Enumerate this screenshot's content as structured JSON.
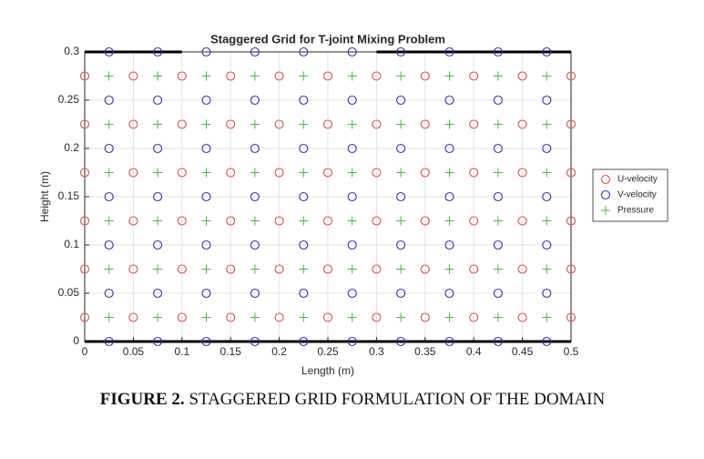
{
  "chart_data": {
    "type": "scatter",
    "title": "Staggered Grid for T-joint Mixing Problem",
    "x_label": "Length (m)",
    "y_label": "Height (m)",
    "xlim": [
      0,
      0.5
    ],
    "ylim": [
      0,
      0.3
    ],
    "xticks": [
      0,
      0.05,
      0.1,
      0.15,
      0.2,
      0.25,
      0.3,
      0.35,
      0.4,
      0.45,
      0.5
    ],
    "yticks": [
      0,
      0.05,
      0.1,
      0.15,
      0.2,
      0.25,
      0.3
    ],
    "grid": true,
    "legend_position": "right",
    "series": [
      {
        "name": "U-velocity",
        "color": "#e0504a",
        "marker": "circle",
        "x": [
          0,
          0.05,
          0.1,
          0.15,
          0.2,
          0.25,
          0.3,
          0.35,
          0.4,
          0.45,
          0.5,
          0,
          0.05,
          0.1,
          0.15,
          0.2,
          0.25,
          0.3,
          0.35,
          0.4,
          0.45,
          0.5,
          0,
          0.05,
          0.1,
          0.15,
          0.2,
          0.25,
          0.3,
          0.35,
          0.4,
          0.45,
          0.5,
          0,
          0.05,
          0.1,
          0.15,
          0.2,
          0.25,
          0.3,
          0.35,
          0.4,
          0.45,
          0.5,
          0,
          0.05,
          0.1,
          0.15,
          0.2,
          0.25,
          0.3,
          0.35,
          0.4,
          0.45,
          0.5,
          0,
          0.05,
          0.1,
          0.15,
          0.2,
          0.25,
          0.3,
          0.35,
          0.4,
          0.45,
          0.5
        ],
        "values": [
          0.025,
          0.025,
          0.025,
          0.025,
          0.025,
          0.025,
          0.025,
          0.025,
          0.025,
          0.025,
          0.025,
          0.075,
          0.075,
          0.075,
          0.075,
          0.075,
          0.075,
          0.075,
          0.075,
          0.075,
          0.075,
          0.075,
          0.125,
          0.125,
          0.125,
          0.125,
          0.125,
          0.125,
          0.125,
          0.125,
          0.125,
          0.125,
          0.125,
          0.175,
          0.175,
          0.175,
          0.175,
          0.175,
          0.175,
          0.175,
          0.175,
          0.175,
          0.175,
          0.175,
          0.225,
          0.225,
          0.225,
          0.225,
          0.225,
          0.225,
          0.225,
          0.225,
          0.225,
          0.225,
          0.225,
          0.275,
          0.275,
          0.275,
          0.275,
          0.275,
          0.275,
          0.275,
          0.275,
          0.275,
          0.275,
          0.275
        ]
      },
      {
        "name": "V-velocity",
        "color": "#2f36b0",
        "marker": "circle",
        "x": [
          0.025,
          0.075,
          0.125,
          0.175,
          0.225,
          0.275,
          0.325,
          0.375,
          0.425,
          0.475,
          0.025,
          0.075,
          0.125,
          0.175,
          0.225,
          0.275,
          0.325,
          0.375,
          0.425,
          0.475,
          0.025,
          0.075,
          0.125,
          0.175,
          0.225,
          0.275,
          0.325,
          0.375,
          0.425,
          0.475,
          0.025,
          0.075,
          0.125,
          0.175,
          0.225,
          0.275,
          0.325,
          0.375,
          0.425,
          0.475,
          0.025,
          0.075,
          0.125,
          0.175,
          0.225,
          0.275,
          0.325,
          0.375,
          0.425,
          0.475,
          0.025,
          0.075,
          0.125,
          0.175,
          0.225,
          0.275,
          0.325,
          0.375,
          0.425,
          0.475,
          0.025,
          0.075,
          0.125,
          0.175,
          0.225,
          0.275,
          0.325,
          0.375,
          0.425,
          0.475
        ],
        "values": [
          0,
          0,
          0,
          0,
          0,
          0,
          0,
          0,
          0,
          0,
          0.05,
          0.05,
          0.05,
          0.05,
          0.05,
          0.05,
          0.05,
          0.05,
          0.05,
          0.05,
          0.1,
          0.1,
          0.1,
          0.1,
          0.1,
          0.1,
          0.1,
          0.1,
          0.1,
          0.1,
          0.15,
          0.15,
          0.15,
          0.15,
          0.15,
          0.15,
          0.15,
          0.15,
          0.15,
          0.15,
          0.2,
          0.2,
          0.2,
          0.2,
          0.2,
          0.2,
          0.2,
          0.2,
          0.2,
          0.2,
          0.25,
          0.25,
          0.25,
          0.25,
          0.25,
          0.25,
          0.25,
          0.25,
          0.25,
          0.25,
          0.3,
          0.3,
          0.3,
          0.3,
          0.3,
          0.3,
          0.3,
          0.3,
          0.3,
          0.3
        ]
      },
      {
        "name": "Pressure",
        "color": "#3cbf3c",
        "marker": "plus",
        "x": [
          0.025,
          0.075,
          0.125,
          0.175,
          0.225,
          0.275,
          0.325,
          0.375,
          0.425,
          0.475,
          0.025,
          0.075,
          0.125,
          0.175,
          0.225,
          0.275,
          0.325,
          0.375,
          0.425,
          0.475,
          0.025,
          0.075,
          0.125,
          0.175,
          0.225,
          0.275,
          0.325,
          0.375,
          0.425,
          0.475,
          0.025,
          0.075,
          0.125,
          0.175,
          0.225,
          0.275,
          0.325,
          0.375,
          0.425,
          0.475,
          0.025,
          0.075,
          0.125,
          0.175,
          0.225,
          0.275,
          0.325,
          0.375,
          0.425,
          0.475,
          0.025,
          0.075,
          0.125,
          0.175,
          0.225,
          0.275,
          0.325,
          0.375,
          0.425,
          0.475
        ],
        "values": [
          0.025,
          0.025,
          0.025,
          0.025,
          0.025,
          0.025,
          0.025,
          0.025,
          0.025,
          0.025,
          0.075,
          0.075,
          0.075,
          0.075,
          0.075,
          0.075,
          0.075,
          0.075,
          0.075,
          0.075,
          0.125,
          0.125,
          0.125,
          0.125,
          0.125,
          0.125,
          0.125,
          0.125,
          0.125,
          0.125,
          0.175,
          0.175,
          0.175,
          0.175,
          0.175,
          0.175,
          0.175,
          0.175,
          0.175,
          0.175,
          0.225,
          0.225,
          0.225,
          0.225,
          0.225,
          0.225,
          0.225,
          0.225,
          0.225,
          0.225,
          0.275,
          0.275,
          0.275,
          0.275,
          0.275,
          0.275,
          0.275,
          0.275,
          0.275,
          0.275
        ]
      }
    ],
    "walls": {
      "color": "#000000",
      "lines": [
        {
          "x": [
            0,
            0.1
          ],
          "y": [
            0.3,
            0.3
          ]
        },
        {
          "x": [
            0.3,
            0.5
          ],
          "y": [
            0.3,
            0.3
          ]
        },
        {
          "x": [
            0,
            0.5
          ],
          "y": [
            0,
            0
          ]
        }
      ]
    }
  },
  "caption": {
    "label": "FIGURE 2.",
    "text": "STAGGERED GRID FORMULATION OF THE DOMAIN"
  }
}
